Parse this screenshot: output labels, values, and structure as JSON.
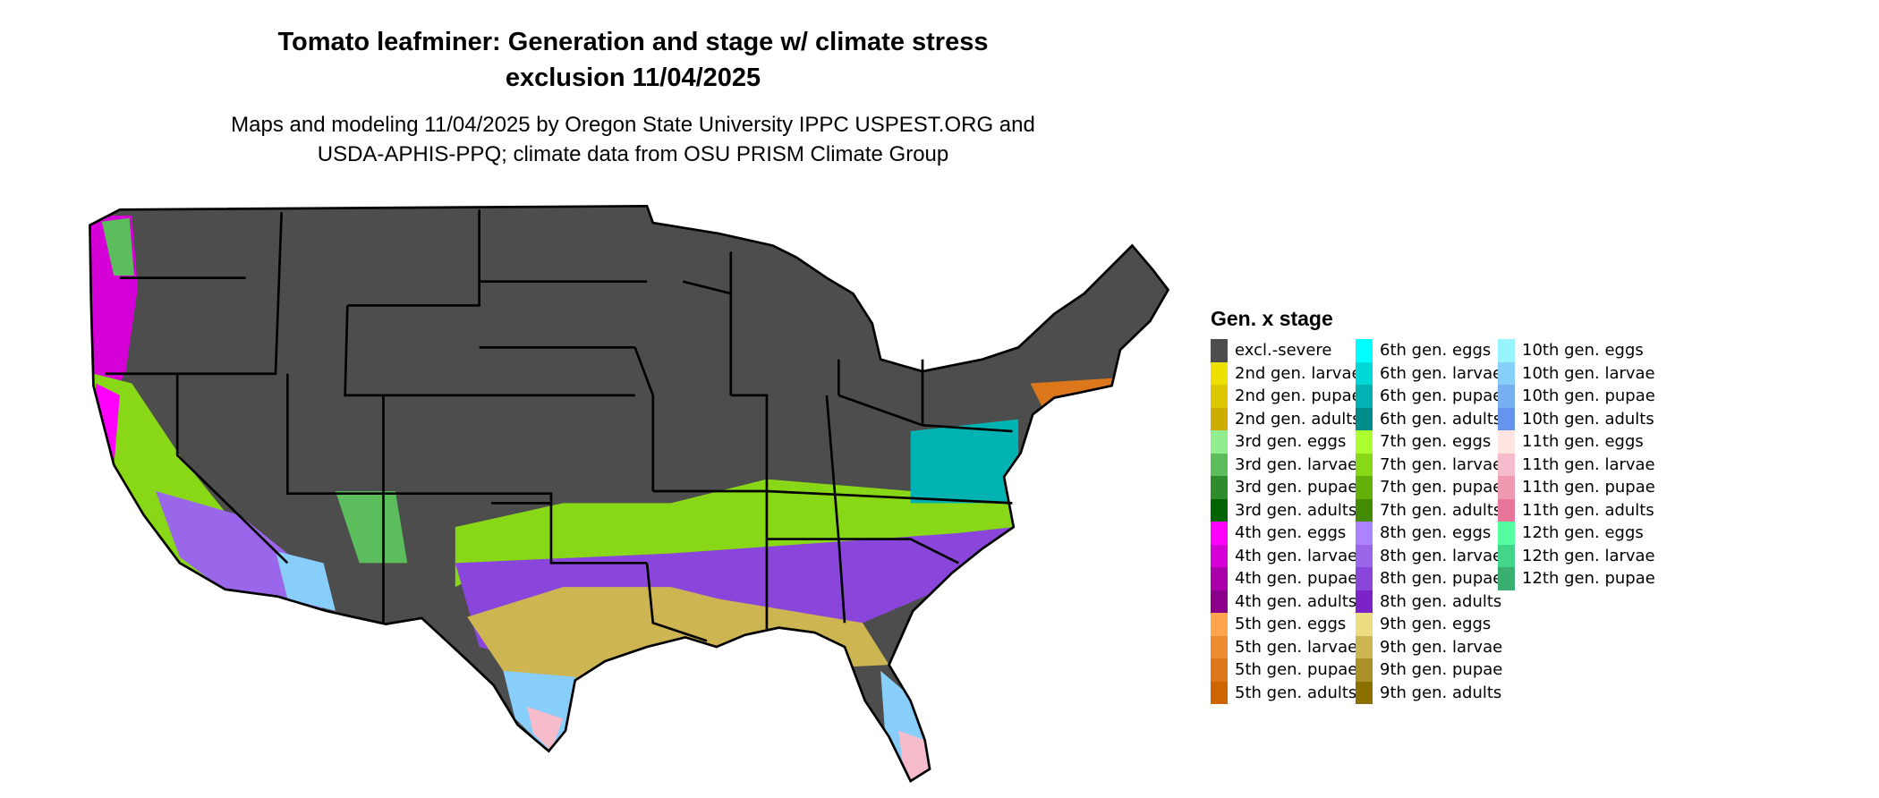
{
  "title_line1": "Tomato leafminer: Generation and stage w/ climate stress",
  "title_line2": "exclusion 11/04/2025",
  "subtitle_line1": "Maps and modeling 11/04/2025 by Oregon State University IPPC USPEST.ORG and",
  "subtitle_line2": "USDA-APHIS-PPQ; climate data from OSU PRISM Climate Group",
  "legend": {
    "title": "Gen. x stage",
    "items": [
      {
        "label": "excl.-severe",
        "color": "#4d4d4d"
      },
      {
        "label": "2nd gen. larvae",
        "color": "#eee000"
      },
      {
        "label": "2nd gen. pupae",
        "color": "#ddc800"
      },
      {
        "label": "2nd gen. adults",
        "color": "#cdad00"
      },
      {
        "label": "3rd gen. eggs",
        "color": "#90ee90"
      },
      {
        "label": "3rd gen. larvae",
        "color": "#5cbd5c"
      },
      {
        "label": "3rd gen. pupae",
        "color": "#2e8b2e"
      },
      {
        "label": "3rd gen. adults",
        "color": "#006400"
      },
      {
        "label": "4th gen. eggs",
        "color": "#ff00ff"
      },
      {
        "label": "4th gen. larvae",
        "color": "#d500d5"
      },
      {
        "label": "4th gen. pupae",
        "color": "#aa00aa"
      },
      {
        "label": "4th gen. adults",
        "color": "#8b008b"
      },
      {
        "label": "5th gen. eggs",
        "color": "#ffa54f"
      },
      {
        "label": "5th gen. larvae",
        "color": "#ee8a30"
      },
      {
        "label": "5th gen. pupae",
        "color": "#dd771c"
      },
      {
        "label": "5th gen. adults",
        "color": "#cd6600"
      },
      {
        "label": "6th gen. eggs",
        "color": "#00ffff"
      },
      {
        "label": "6th gen. larvae",
        "color": "#00d8d8"
      },
      {
        "label": "6th gen. pupae",
        "color": "#00b2b2"
      },
      {
        "label": "6th gen. adults",
        "color": "#008b8b"
      },
      {
        "label": "7th gen. eggs",
        "color": "#adff2f"
      },
      {
        "label": "7th gen. larvae",
        "color": "#88d818"
      },
      {
        "label": "7th gen. pupae",
        "color": "#64b00a"
      },
      {
        "label": "7th gen. adults",
        "color": "#458b00"
      },
      {
        "label": "8th gen. eggs",
        "color": "#ab82ff"
      },
      {
        "label": "8th gen. larvae",
        "color": "#9a66ea"
      },
      {
        "label": "8th gen. pupae",
        "color": "#8a46da"
      },
      {
        "label": "8th gen. adults",
        "color": "#7a24c8"
      },
      {
        "label": "9th gen. eggs",
        "color": "#eedc82"
      },
      {
        "label": "9th gen. larvae",
        "color": "#cdb552"
      },
      {
        "label": "9th gen. pupae",
        "color": "#aa9028"
      },
      {
        "label": "9th gen. adults",
        "color": "#8b7000"
      },
      {
        "label": "10th gen. eggs",
        "color": "#98f5ff"
      },
      {
        "label": "10th gen. larvae",
        "color": "#87cefa"
      },
      {
        "label": "10th gen. pupae",
        "color": "#76b0f0"
      },
      {
        "label": "10th gen. adults",
        "color": "#6495ed"
      },
      {
        "label": "11th gen. eggs",
        "color": "#ffe4e1"
      },
      {
        "label": "11th gen. larvae",
        "color": "#f7bccb"
      },
      {
        "label": "11th gen. pupae",
        "color": "#f09ab2"
      },
      {
        "label": "11th gen. adults",
        "color": "#e8769a"
      },
      {
        "label": "12th gen. eggs",
        "color": "#54ff9f"
      },
      {
        "label": "12th gen. larvae",
        "color": "#43d68a"
      },
      {
        "label": "12th gen. pupae",
        "color": "#3aaf72"
      }
    ]
  }
}
